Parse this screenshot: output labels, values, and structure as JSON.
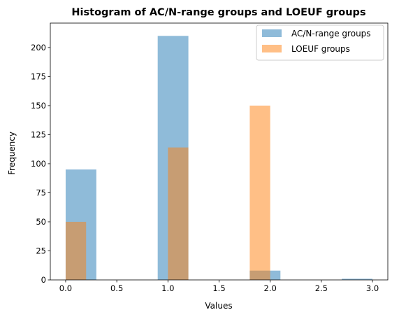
{
  "chart_data": {
    "type": "bar",
    "title": "Histogram of AC/N-range groups and LOEUF groups",
    "xlabel": "Values",
    "ylabel": "Frequency",
    "xlim": [
      -0.15,
      3.15
    ],
    "ylim": [
      0,
      221
    ],
    "x_ticks": [
      "0.0",
      "0.5",
      "1.0",
      "1.5",
      "2.0",
      "2.5",
      "3.0"
    ],
    "y_ticks": [
      "0",
      "25",
      "50",
      "75",
      "100",
      "125",
      "150",
      "175",
      "200"
    ],
    "legend_position": "top-right",
    "series": [
      {
        "name": "AC/N-range groups",
        "color": "#1f77b4",
        "opacity": 0.5,
        "bins": [
          {
            "x0": 0.0,
            "x1": 0.3,
            "count": 95
          },
          {
            "x0": 0.9,
            "x1": 1.2,
            "count": 210
          },
          {
            "x0": 1.8,
            "x1": 2.1,
            "count": 8
          },
          {
            "x0": 2.7,
            "x1": 3.0,
            "count": 1
          }
        ]
      },
      {
        "name": "LOEUF groups",
        "color": "#ff7f0e",
        "opacity": 0.5,
        "bins": [
          {
            "x0": 0.0,
            "x1": 0.2,
            "count": 50
          },
          {
            "x0": 1.0,
            "x1": 1.2,
            "count": 114
          },
          {
            "x0": 1.8,
            "x1": 2.0,
            "count": 150
          }
        ]
      }
    ]
  }
}
